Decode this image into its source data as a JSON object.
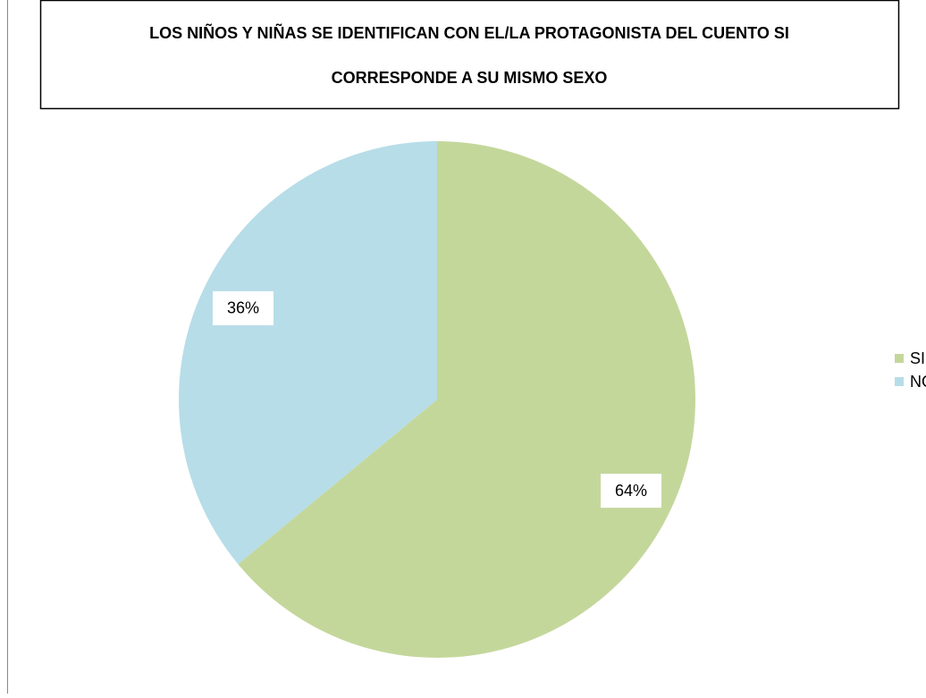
{
  "chart_data": {
    "type": "pie",
    "title": [
      "LOS NIÑOS Y NIÑAS SE IDENTIFICAN CON EL/LA PROTAGONISTA DEL CUENTO  SI",
      "CORRESPONDE A SU MISMO SEXO"
    ],
    "categories": [
      "SI",
      "NO"
    ],
    "values": [
      64,
      36
    ],
    "value_labels": [
      "64%",
      "36%"
    ],
    "colors": [
      "#c4d79b",
      "#b7dde8"
    ],
    "legend": "right"
  }
}
